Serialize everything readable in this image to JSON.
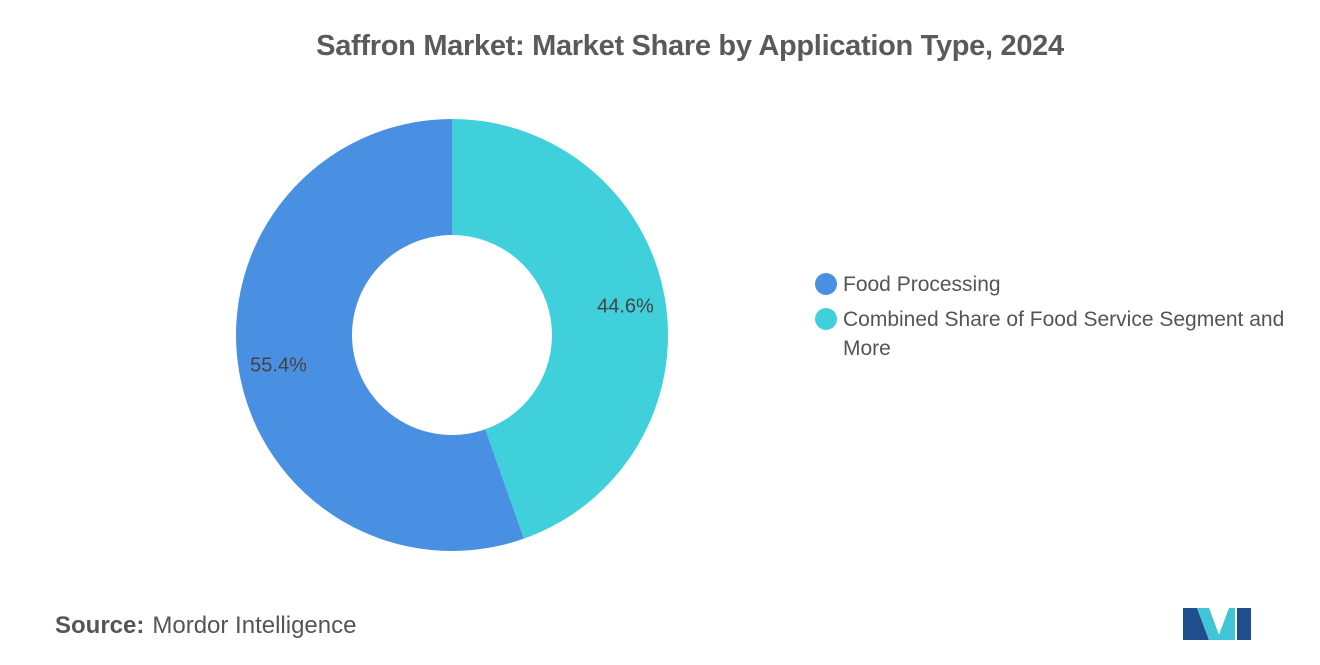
{
  "title": "Saffron Market: Market Share by Application Type, 2024",
  "chart_data": {
    "type": "pie",
    "donut": true,
    "title": "Saffron Market: Market Share by Application Type, 2024",
    "series": [
      {
        "name": "Food Processing",
        "value": 55.4,
        "label": "55.4%",
        "color": "#4A90E2"
      },
      {
        "name": "Combined Share of Food Service Segment and More",
        "value": 44.6,
        "label": "44.6%",
        "color": "#40D0DB"
      }
    ],
    "legend_position": "right"
  },
  "source": {
    "key": "Source:",
    "value": "Mordor Intelligence"
  },
  "logo": {
    "icon": "mordor-intelligence-logo-icon",
    "colors": [
      "#1F4E8C",
      "#40C4D6"
    ]
  }
}
